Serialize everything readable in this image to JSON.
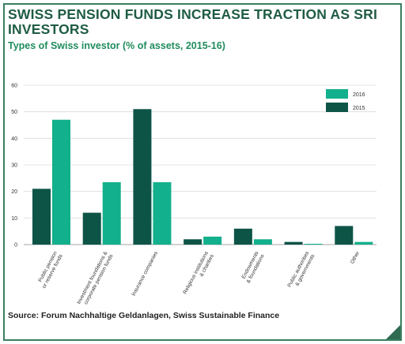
{
  "header": {
    "title": "SWISS PENSION FUNDS INCREASE TRACTION AS SRI INVESTORS",
    "subtitle": "Types of Swiss investor (% of assets, 2015-16)"
  },
  "source": "Source: Forum Nachhaltige Geldanlagen, Swiss Sustainable Finance",
  "colors": {
    "series_2016": "#12b08c",
    "series_2015": "#0d5447",
    "frame": "#3a7f60",
    "title": "#1f5c44"
  },
  "chart_data": {
    "type": "bar",
    "categories": [
      [
        "Public pension",
        "or reserve funds"
      ],
      [
        "Investment foundations &",
        "corporate pension funds"
      ],
      [
        "Insurance companies"
      ],
      [
        "Religious institutions",
        "& charities"
      ],
      [
        "Endowments",
        "& foundations"
      ],
      [
        "Public authorities",
        "& governments"
      ],
      [
        "Other"
      ]
    ],
    "series": [
      {
        "name": "2015",
        "values": [
          21,
          12,
          51,
          2,
          6,
          1,
          7
        ]
      },
      {
        "name": "2016",
        "values": [
          47,
          23.5,
          23.5,
          3,
          2,
          0.3,
          1
        ]
      }
    ],
    "ylim": [
      0,
      60
    ],
    "yticks": [
      0,
      10,
      20,
      30,
      40,
      50,
      60
    ],
    "grid": "horizontal",
    "legend": "top-right"
  }
}
